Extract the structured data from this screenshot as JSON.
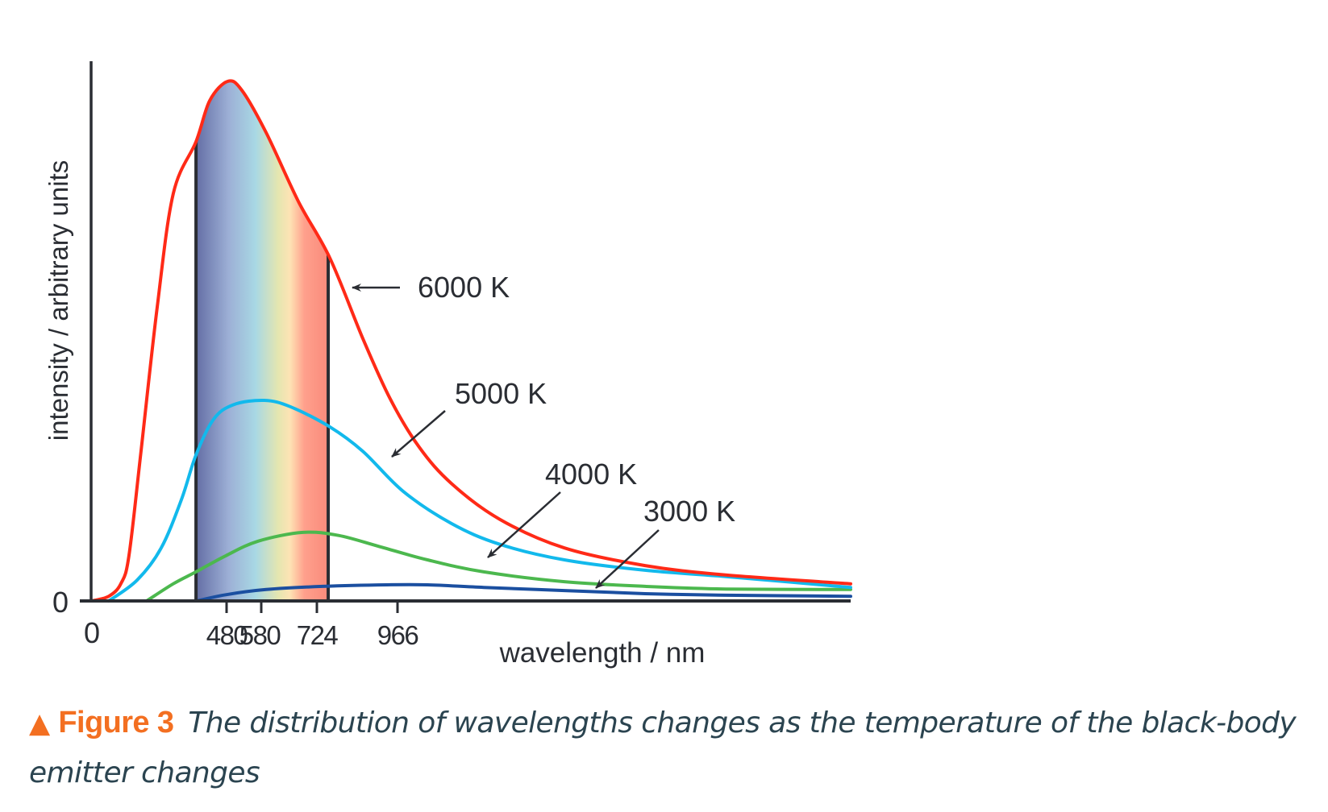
{
  "chart_data": {
    "type": "line",
    "title": "",
    "xlabel": "wavelength / nm",
    "ylabel": "intensity / arbitrary units",
    "x_ticks": [
      480,
      580,
      724,
      966
    ],
    "x_origin_label": "0",
    "y_origin_label": "0",
    "x_range_nm": [
      0,
      2326
    ],
    "y_range": [
      0,
      100
    ],
    "grid": false,
    "visible_band_nm": [
      371,
      758
    ],
    "series": [
      {
        "name": "6000 K",
        "color": "#ff2a17",
        "peak_nm": 480,
        "points": [
          [
            0,
            0
          ],
          [
            60,
            0.9
          ],
          [
            103,
            3.3
          ],
          [
            132,
            8.7
          ],
          [
            175,
            28.8
          ],
          [
            233,
            56.7
          ],
          [
            290,
            78.4
          ],
          [
            371,
            88.4
          ],
          [
            420,
            96.3
          ],
          [
            483,
            100
          ],
          [
            524,
            98.3
          ],
          [
            593,
            90.1
          ],
          [
            676,
            76.9
          ],
          [
            763,
            66.0
          ],
          [
            862,
            50.5
          ],
          [
            944,
            38.9
          ],
          [
            1031,
            29.6
          ],
          [
            1128,
            22.6
          ],
          [
            1273,
            15.7
          ],
          [
            1467,
            10.2
          ],
          [
            1709,
            6.8
          ],
          [
            1951,
            5.0
          ],
          [
            2326,
            3.3
          ]
        ]
      },
      {
        "name": "5000 K",
        "color": "#12b9ec",
        "peak_nm": 580,
        "points": [
          [
            60,
            0
          ],
          [
            161,
            4.0
          ],
          [
            247,
            10.2
          ],
          [
            319,
            19.5
          ],
          [
            371,
            28.1
          ],
          [
            434,
            35.0
          ],
          [
            501,
            37.8
          ],
          [
            588,
            38.6
          ],
          [
            655,
            37.4
          ],
          [
            763,
            33.5
          ],
          [
            862,
            28.8
          ],
          [
            983,
            21.1
          ],
          [
            1128,
            14.9
          ],
          [
            1273,
            10.9
          ],
          [
            1467,
            7.9
          ],
          [
            1709,
            5.9
          ],
          [
            1951,
            4.7
          ],
          [
            2326,
            2.6
          ]
        ]
      },
      {
        "name": "4000 K",
        "color": "#4cb84e",
        "peak_nm": 724,
        "points": [
          [
            195,
            0
          ],
          [
            290,
            3.3
          ],
          [
            371,
            5.6
          ],
          [
            477,
            8.7
          ],
          [
            571,
            11.5
          ],
          [
            688,
            13.2
          ],
          [
            789,
            12.6
          ],
          [
            910,
            10.5
          ],
          [
            1056,
            7.9
          ],
          [
            1225,
            5.6
          ],
          [
            1467,
            3.7
          ],
          [
            1709,
            2.8
          ],
          [
            1951,
            2.3
          ],
          [
            2326,
            2.2
          ]
        ]
      },
      {
        "name": "3000 K",
        "color": "#1b4fa0",
        "peak_nm": 966,
        "points": [
          [
            374,
            0
          ],
          [
            477,
            1.2
          ],
          [
            593,
            2.2
          ],
          [
            741,
            2.8
          ],
          [
            934,
            3.1
          ],
          [
            1056,
            3.1
          ],
          [
            1225,
            2.6
          ],
          [
            1467,
            2.0
          ],
          [
            1709,
            1.4
          ],
          [
            1951,
            1.1
          ],
          [
            2326,
            0.9
          ]
        ]
      }
    ],
    "annotations": [
      {
        "text": "6000 K",
        "series": "6000 K"
      },
      {
        "text": "5000 K",
        "series": "5000 K"
      },
      {
        "text": "4000 K",
        "series": "4000 K"
      },
      {
        "text": "3000 K",
        "series": "3000 K"
      }
    ]
  },
  "caption": {
    "marker": "▲",
    "figure_label": "Figure 3",
    "text": "The distribution of wavelengths changes as the temperature of the black-body emitter changes",
    "marker_color": "#f36f21",
    "text_color": "#2b4450"
  }
}
